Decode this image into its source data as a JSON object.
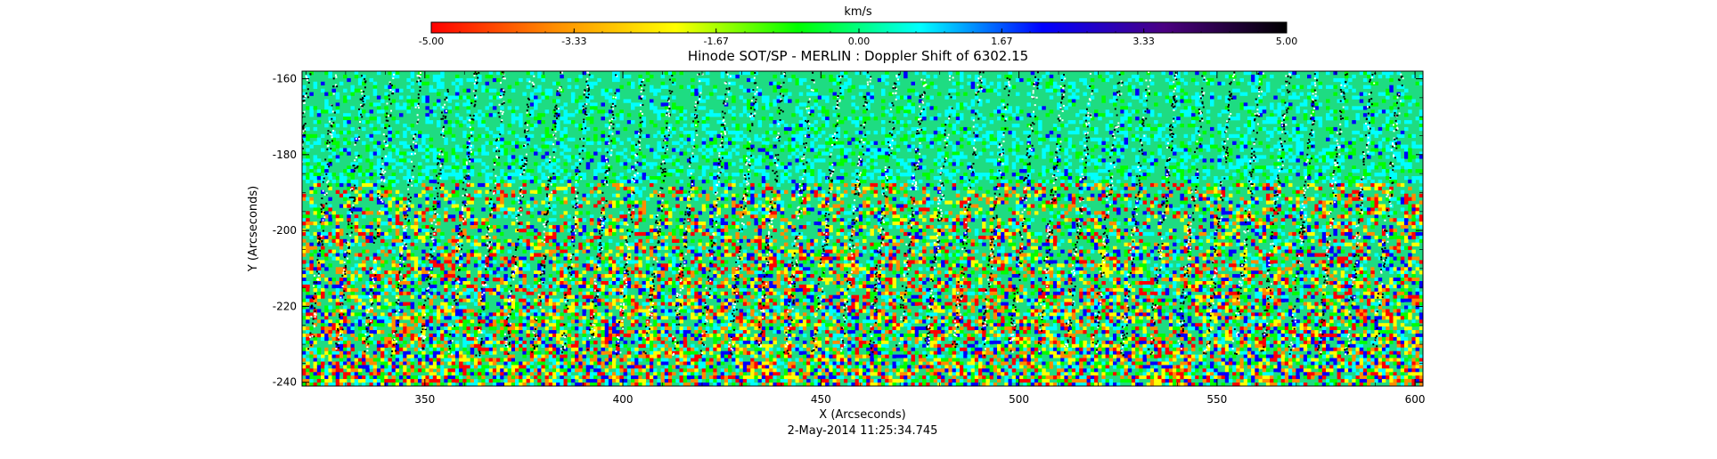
{
  "chart_data": {
    "type": "heatmap",
    "title": "Hinode SOT/SP - MERLIN : Doppler Shift of 6302.15",
    "xlabel": "X (Arcseconds)",
    "ylabel": "Y (Arcseconds)",
    "footer": "2-May-2014 11:25:34.745",
    "xlim": [
      319,
      602
    ],
    "ylim": [
      -241,
      -158
    ],
    "x_ticks": [
      350,
      400,
      450,
      500,
      550,
      600
    ],
    "y_ticks": [
      -160,
      -180,
      -200,
      -220,
      -240
    ],
    "x_tick_labels": [
      "350",
      "400",
      "450",
      "500",
      "550",
      "600"
    ],
    "y_tick_labels": [
      "-160",
      "-180",
      "-200",
      "-220",
      "-240"
    ],
    "colorbar": {
      "label": "km/s",
      "range": [
        -5.0,
        5.0
      ],
      "ticks": [
        -5.0,
        -3.33,
        -1.67,
        0.0,
        1.67,
        3.33,
        5.0
      ],
      "tick_labels": [
        "-5.00",
        "-3.33",
        "-1.67",
        "0.00",
        "1.67",
        "3.33",
        "5.00"
      ],
      "colors": [
        "#ff0000",
        "#ff8c00",
        "#ffff00",
        "#00ff00",
        "#00ffff",
        "#0000ff",
        "#4b0082",
        "#000000"
      ]
    },
    "field": {
      "background_color": "#1edc82",
      "num_slit_stripes": 40,
      "stripe_colors": [
        "#000000",
        "#ffffff"
      ],
      "noise_colors": [
        "#00ffff",
        "#1edc82",
        "#00ff00",
        "#ffff00",
        "#ff8c00",
        "#0000ff",
        "#ff0000"
      ]
    },
    "grid": false
  }
}
